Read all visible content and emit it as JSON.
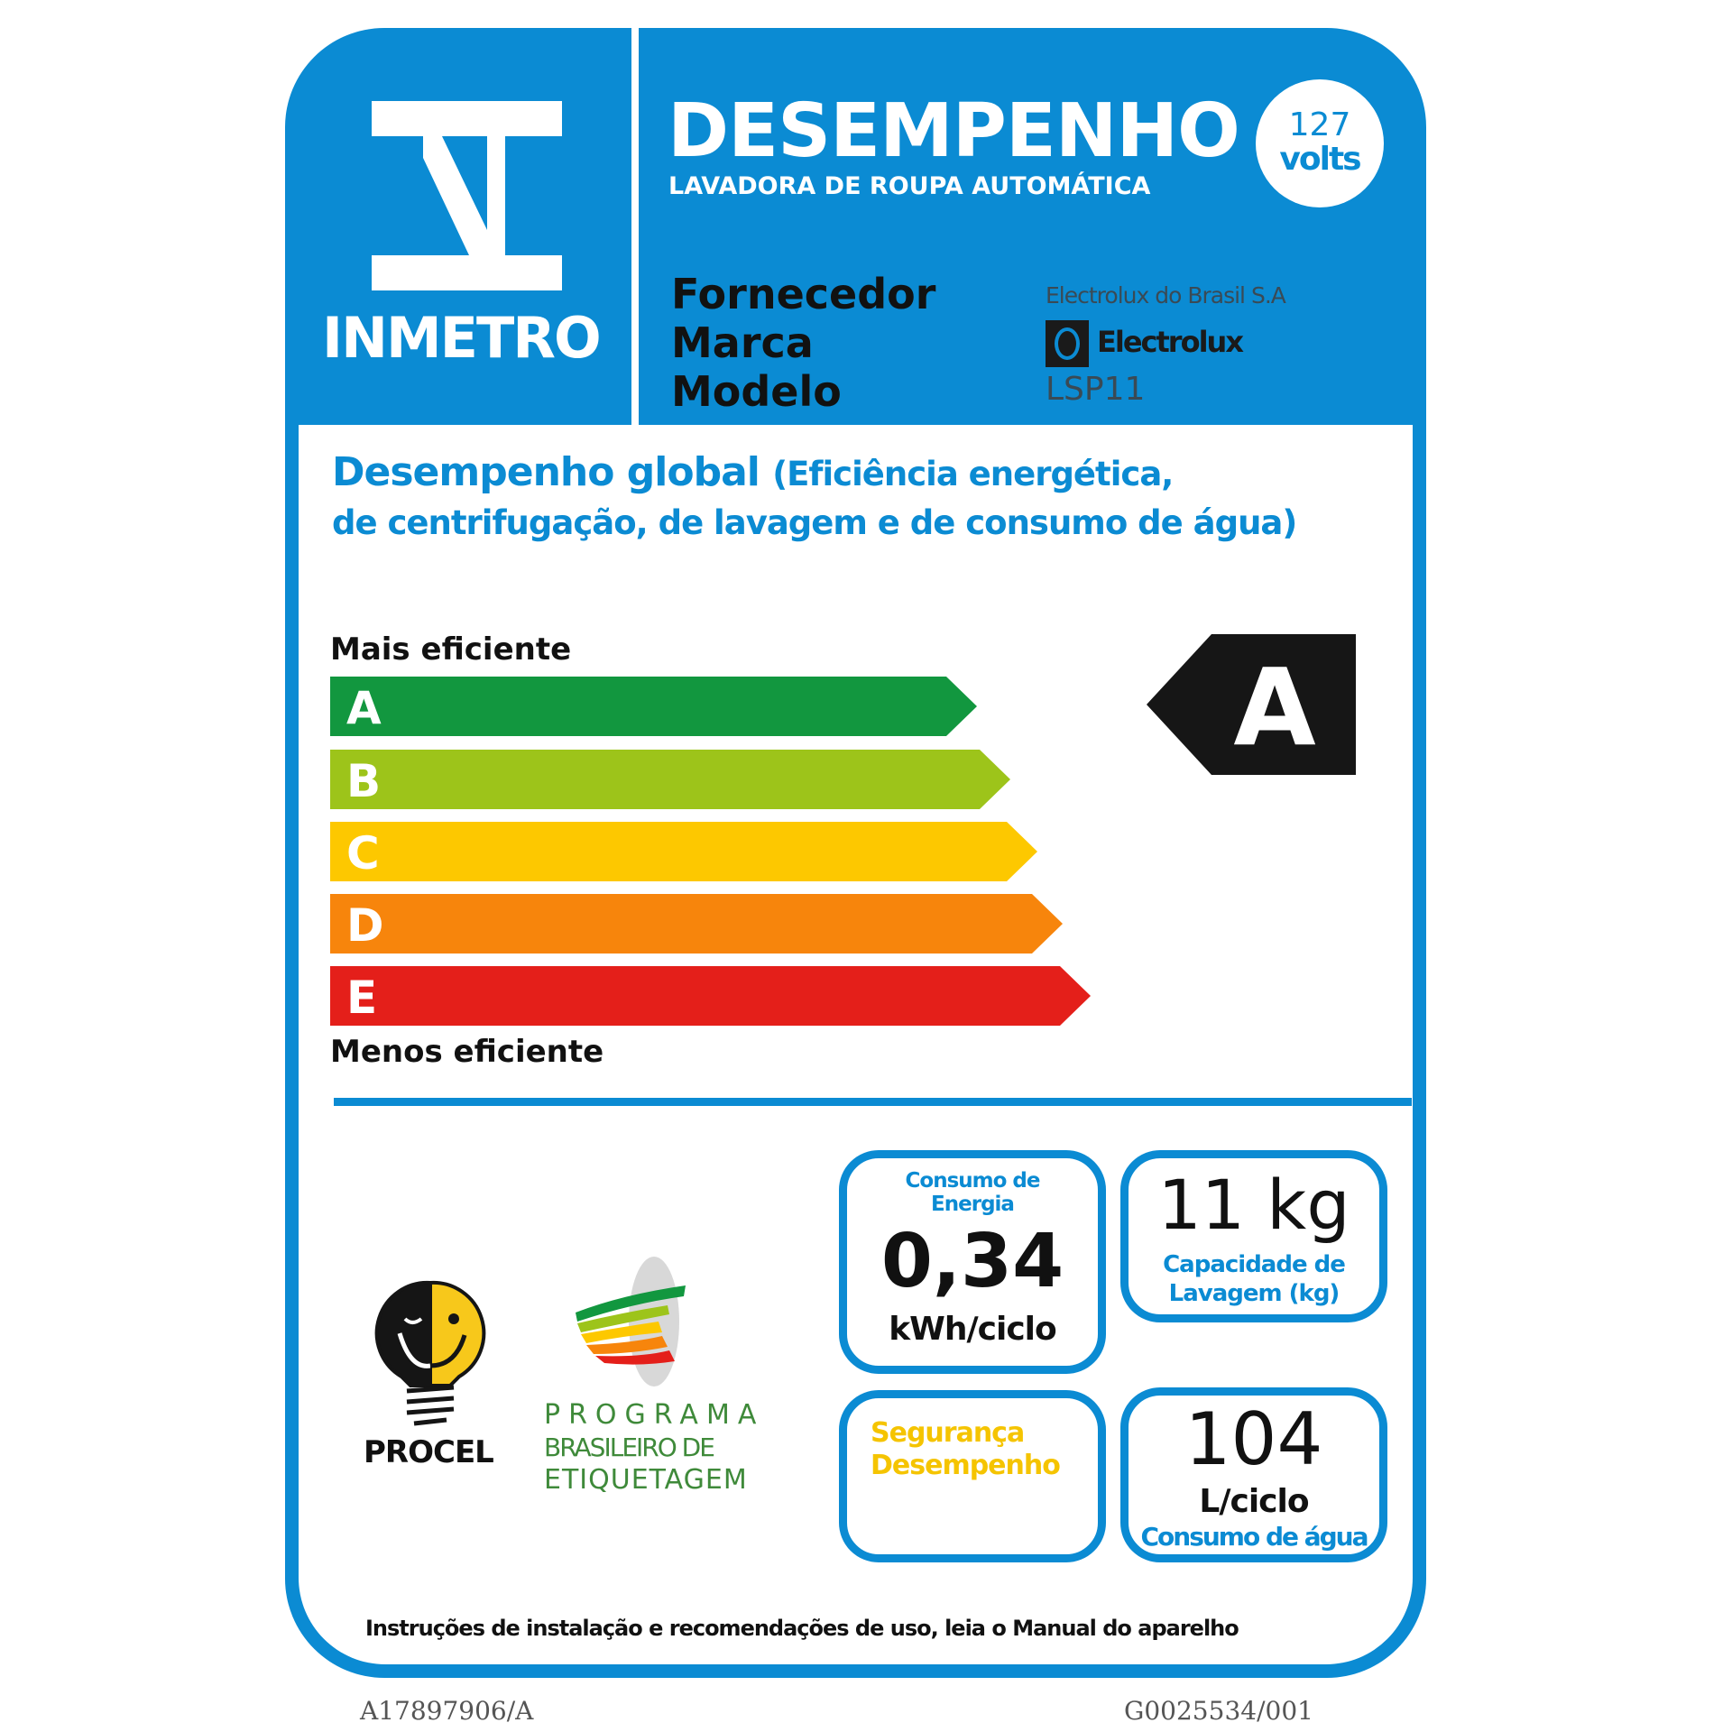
{
  "header": {
    "logo_text": "INMETRO",
    "title": "DESEMPENHO",
    "subtitle": "LAVADORA DE ROUPA AUTOMÁTICA",
    "voltage": {
      "value": "127",
      "unit": "volts"
    },
    "fields": [
      {
        "label": "Fornecedor",
        "value": "Electrolux do Brasil S.A"
      },
      {
        "label": "Marca",
        "value": "Electrolux"
      },
      {
        "label": "Modelo",
        "value": "LSP11"
      }
    ]
  },
  "performance": {
    "title_bold": "Desempenho global",
    "title_rest_1": "(Eficiência energética,",
    "title_line_2": "de centrifugação, de lavagem e de consumo de água)",
    "top_label": "Mais eficiente",
    "bottom_label": "Menos eficiente",
    "classes": [
      {
        "letter": "A",
        "color": "#12973f"
      },
      {
        "letter": "B",
        "color": "#9dc41a"
      },
      {
        "letter": "C",
        "color": "#fdc800"
      },
      {
        "letter": "D",
        "color": "#f7850c"
      },
      {
        "letter": "E",
        "color": "#e41f1a"
      }
    ],
    "rating": "A"
  },
  "boxes": {
    "energy": {
      "label_1": "Consumo de",
      "label_2": "Energia",
      "value": "0,34",
      "unit": "kWh/ciclo"
    },
    "capacity": {
      "value": "11 kg",
      "label_1": "Capacidade de",
      "label_2": "Lavagem (kg)"
    },
    "safety": {
      "label_1": "Segurança",
      "label_2": "Desempenho"
    },
    "water": {
      "value": "104",
      "unit": "L/ciclo",
      "label": "Consumo  de água"
    }
  },
  "logos": {
    "procel": "PROCEL",
    "pbe": [
      "PROGRAMA",
      "BRASILEIRO DE",
      "ETIQUETAGEM"
    ]
  },
  "footer": {
    "instructions": "Instruções de instalação e recomendações de uso, leia o Manual do aparelho",
    "code_left": "A17897906/A",
    "code_right": "G0025534/001"
  },
  "colors": {
    "brand_blue": "#0b8bd3",
    "safety_yellow": "#f5c400",
    "pbe_green": "#3f8a3a"
  }
}
